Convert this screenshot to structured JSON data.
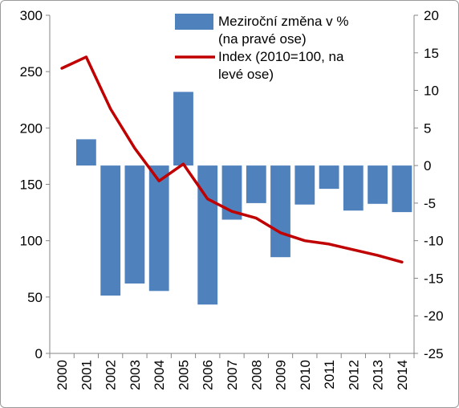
{
  "chart_data": {
    "type": "bar+line",
    "categories": [
      "2000",
      "2001",
      "2002",
      "2003",
      "2004",
      "2005",
      "2006",
      "2007",
      "2008",
      "2009",
      "2010",
      "2011",
      "2012",
      "2013",
      "2014"
    ],
    "series": [
      {
        "name": "Meziroční změna v % (na pravé ose)",
        "type": "bar",
        "axis": "right",
        "color": "#4f81bd",
        "values": [
          null,
          3.5,
          -17.3,
          -15.7,
          -16.7,
          9.8,
          -18.5,
          -7.2,
          -5.0,
          -12.2,
          -5.2,
          -3.1,
          -6.0,
          -5.1,
          -6.2
        ]
      },
      {
        "name": "Index (2010=100, na levé ose)",
        "type": "line",
        "axis": "left",
        "color": "#c00000",
        "values": [
          253,
          263,
          217,
          182,
          153,
          168,
          137,
          126,
          120,
          107,
          100,
          97,
          92,
          87,
          81
        ]
      }
    ],
    "y_left": {
      "range": [
        0,
        300
      ],
      "ticks": [
        "0",
        "50",
        "100",
        "150",
        "200",
        "250",
        "300"
      ]
    },
    "y_right": {
      "range": [
        -25,
        20
      ],
      "ticks": [
        "20",
        "15",
        "10",
        "5",
        "0",
        "-5",
        "-10",
        "-15",
        "-20",
        "-25"
      ]
    },
    "grid": false,
    "legend_position": "top-right",
    "legend": [
      {
        "lines": [
          "Meziroční změna v %",
          "(na pravé ose)"
        ],
        "marker": "bar",
        "color": "#4f81bd"
      },
      {
        "lines": [
          "Index (2010=100, na",
          "levé ose)"
        ],
        "marker": "line",
        "color": "#c00000"
      }
    ]
  }
}
